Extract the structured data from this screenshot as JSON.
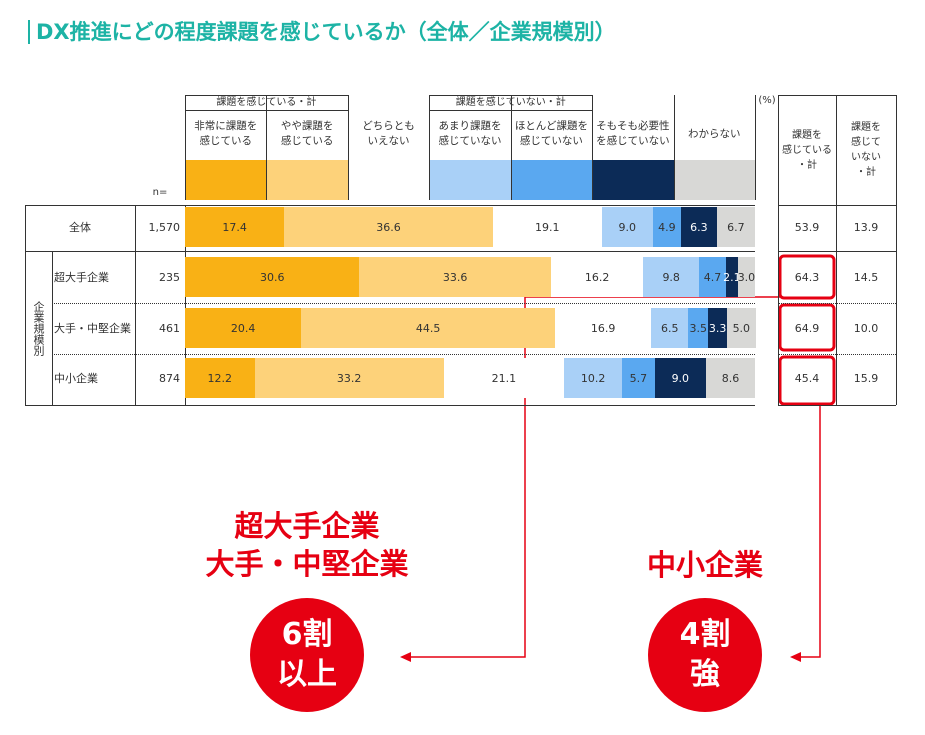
{
  "chart_data": {
    "type": "bar",
    "orientation": "horizontal",
    "stacked": true,
    "title": "DX推進にどの程度課題を感じているか（全体／企業規模別）",
    "unit_label": "(%)",
    "n_label": "n=",
    "group_headers": [
      "課題を感じている・計",
      "課題を感じていない・計"
    ],
    "row_group_label": "企業規模別",
    "categories": [
      "全体",
      "超大手企業",
      "大手・中堅企業",
      "中小企業"
    ],
    "sample_sizes": [
      {
        "value": 1570,
        "label": "1,570"
      },
      235,
      461,
      874
    ],
    "xlim": [
      0,
      100
    ],
    "series": [
      {
        "name": "非常に課題を\n感じている",
        "color": "#f9b115",
        "values": [
          17.4,
          30.6,
          20.4,
          12.2
        ],
        "value_labels": [
          "17.4",
          "30.6",
          "20.4",
          "12.2"
        ]
      },
      {
        "name": "やや課題を\n感じている",
        "color": "#fdd27a",
        "values": [
          36.6,
          33.6,
          44.5,
          33.2
        ],
        "value_labels": [
          "36.6",
          "33.6",
          "44.5",
          "33.2"
        ]
      },
      {
        "name": "どちらとも\nいえない",
        "color": "#ffffff",
        "values": [
          19.1,
          16.2,
          16.9,
          21.1
        ],
        "value_labels": [
          "19.1",
          "16.2",
          "16.9",
          "21.1"
        ]
      },
      {
        "name": "あまり課題を\n感じていない",
        "color": "#a9d0f7",
        "values": [
          9.0,
          9.8,
          6.5,
          10.2
        ],
        "value_labels": [
          "9.0",
          "9.8",
          "6.5",
          "10.2"
        ]
      },
      {
        "name": "ほとんど課題を\n感じていない",
        "color": "#5aa8f0",
        "values": [
          4.9,
          4.7,
          3.5,
          5.7
        ],
        "value_labels": [
          "4.9",
          "4.7",
          "3.5",
          "5.7"
        ]
      },
      {
        "name": "そもそも必要性\nを感じていない",
        "color": "#0c2b57",
        "values": [
          6.3,
          2.1,
          3.3,
          9.0
        ],
        "value_labels": [
          "6.3",
          "2.1",
          "3.3",
          "9.0"
        ]
      },
      {
        "name": "わからない",
        "color": "#d8d8d6",
        "values": [
          6.7,
          3.0,
          5.0,
          8.6
        ],
        "value_labels": [
          "6.7",
          "3.0",
          "5.0",
          "8.6"
        ]
      }
    ],
    "totals": [
      {
        "name": "課題を\n感じている\n・計",
        "values": [
          53.9,
          64.3,
          64.9,
          45.4
        ],
        "value_labels": [
          "53.9",
          "64.3",
          "64.9",
          "45.4"
        ]
      },
      {
        "name": "課題を\n感じて\nいない\n・計",
        "values": [
          13.9,
          14.5,
          10.0,
          15.9
        ],
        "value_labels": [
          "13.9",
          "14.5",
          "10.0",
          "15.9"
        ]
      }
    ],
    "annotations": [
      "超大手企業\n大手・中堅企業",
      "6割\n以上",
      "中小企業",
      "4割\n強"
    ]
  }
}
